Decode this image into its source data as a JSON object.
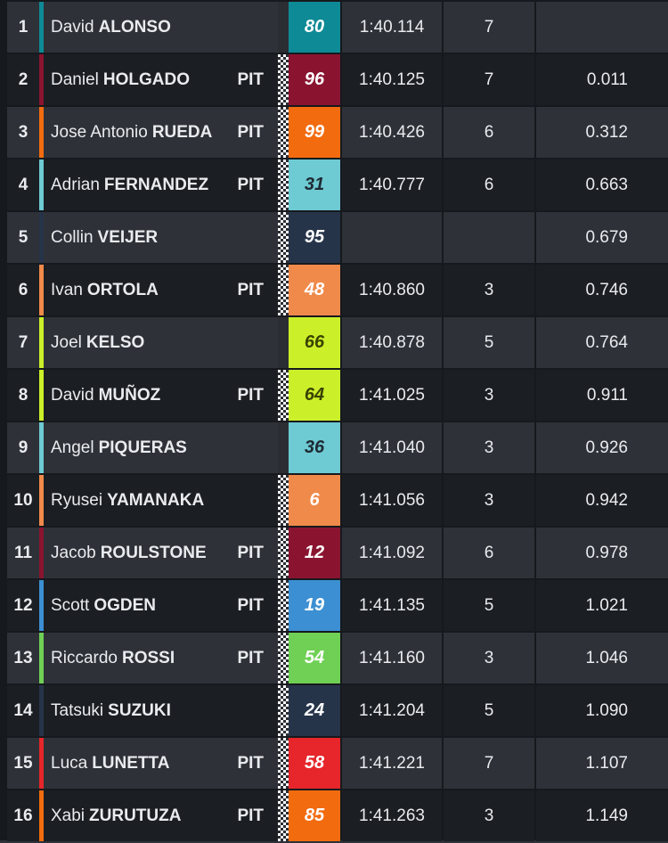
{
  "rows": [
    {
      "pos": "1",
      "first": "David",
      "last": "ALONSO",
      "pit": "",
      "number": "80",
      "time": "1:40.114",
      "laps": "7",
      "gap": "",
      "team_color": "#0e8a96",
      "number_bg": "#0e8a96",
      "number_text": "#ffffff",
      "flag": false
    },
    {
      "pos": "2",
      "first": "Daniel",
      "last": "HOLGADO",
      "pit": "PIT",
      "number": "96",
      "time": "1:40.125",
      "laps": "7",
      "gap": "0.011",
      "team_color": "#8a1430",
      "number_bg": "#8a1430",
      "number_text": "#ffffff",
      "flag": true
    },
    {
      "pos": "3",
      "first": "Jose Antonio",
      "last": "RUEDA",
      "pit": "PIT",
      "number": "99",
      "time": "1:40.426",
      "laps": "6",
      "gap": "0.312",
      "team_color": "#f26b0f",
      "number_bg": "#f26b0f",
      "number_text": "#ffffff",
      "flag": true
    },
    {
      "pos": "4",
      "first": "Adrian",
      "last": "FERNANDEZ",
      "pit": "PIT",
      "number": "31",
      "time": "1:40.777",
      "laps": "6",
      "gap": "0.663",
      "team_color": "#6ecad3",
      "number_bg": "#6ecad3",
      "number_text": "#1e2a33",
      "flag": true
    },
    {
      "pos": "5",
      "first": "Collin",
      "last": "VEIJER",
      "pit": "",
      "number": "95",
      "time": "",
      "laps": "",
      "gap": "0.679",
      "team_color": "#26344a",
      "number_bg": "#26344a",
      "number_text": "#ffffff",
      "flag": true
    },
    {
      "pos": "6",
      "first": "Ivan",
      "last": "ORTOLA",
      "pit": "PIT",
      "number": "48",
      "time": "1:40.860",
      "laps": "3",
      "gap": "0.746",
      "team_color": "#f08a4b",
      "number_bg": "#f08a4b",
      "number_text": "#ffffff",
      "flag": true
    },
    {
      "pos": "7",
      "first": "Joel",
      "last": "KELSO",
      "pit": "",
      "number": "66",
      "time": "1:40.878",
      "laps": "5",
      "gap": "0.764",
      "team_color": "#cbf02a",
      "number_bg": "#cbf02a",
      "number_text": "#3a4200",
      "flag": false
    },
    {
      "pos": "8",
      "first": "David",
      "last": "MUÑOZ",
      "pit": "PIT",
      "number": "64",
      "time": "1:41.025",
      "laps": "3",
      "gap": "0.911",
      "team_color": "#cbf02a",
      "number_bg": "#cbf02a",
      "number_text": "#3a4200",
      "flag": true
    },
    {
      "pos": "9",
      "first": "Angel",
      "last": "PIQUERAS",
      "pit": "",
      "number": "36",
      "time": "1:41.040",
      "laps": "3",
      "gap": "0.926",
      "team_color": "#6ecad3",
      "number_bg": "#6ecad3",
      "number_text": "#1e2a33",
      "flag": false
    },
    {
      "pos": "10",
      "first": "Ryusei",
      "last": "YAMANAKA",
      "pit": "",
      "number": "6",
      "time": "1:41.056",
      "laps": "3",
      "gap": "0.942",
      "team_color": "#f08a4b",
      "number_bg": "#f08a4b",
      "number_text": "#ffffff",
      "flag": true
    },
    {
      "pos": "11",
      "first": "Jacob",
      "last": "ROULSTONE",
      "pit": "PIT",
      "number": "12",
      "time": "1:41.092",
      "laps": "6",
      "gap": "0.978",
      "team_color": "#8a1430",
      "number_bg": "#8a1430",
      "number_text": "#ffffff",
      "flag": true
    },
    {
      "pos": "12",
      "first": "Scott",
      "last": "OGDEN",
      "pit": "PIT",
      "number": "19",
      "time": "1:41.135",
      "laps": "5",
      "gap": "1.021",
      "team_color": "#3c8fd2",
      "number_bg": "#3c8fd2",
      "number_text": "#ffffff",
      "flag": true
    },
    {
      "pos": "13",
      "first": "Riccardo",
      "last": "ROSSI",
      "pit": "PIT",
      "number": "54",
      "time": "1:41.160",
      "laps": "3",
      "gap": "1.046",
      "team_color": "#6fd055",
      "number_bg": "#6fd055",
      "number_text": "#ffffff",
      "flag": true
    },
    {
      "pos": "14",
      "first": "Tatsuki",
      "last": "SUZUKI",
      "pit": "",
      "number": "24",
      "time": "1:41.204",
      "laps": "5",
      "gap": "1.090",
      "team_color": "#26344a",
      "number_bg": "#26344a",
      "number_text": "#ffffff",
      "flag": true
    },
    {
      "pos": "15",
      "first": "Luca",
      "last": "LUNETTA",
      "pit": "PIT",
      "number": "58",
      "time": "1:41.221",
      "laps": "7",
      "gap": "1.107",
      "team_color": "#e6262a",
      "number_bg": "#e6262a",
      "number_text": "#ffffff",
      "flag": true
    },
    {
      "pos": "16",
      "first": "Xabi",
      "last": "ZURUTUZA",
      "pit": "PIT",
      "number": "85",
      "time": "1:41.263",
      "laps": "3",
      "gap": "1.149",
      "team_color": "#f26b0f",
      "number_bg": "#f26b0f",
      "number_text": "#ffffff",
      "flag": true
    }
  ],
  "colors": {
    "row_odd_bg": "#2e3238",
    "row_even_bg": "#1b1e22",
    "flag_off_bg": "#2a2e33"
  }
}
